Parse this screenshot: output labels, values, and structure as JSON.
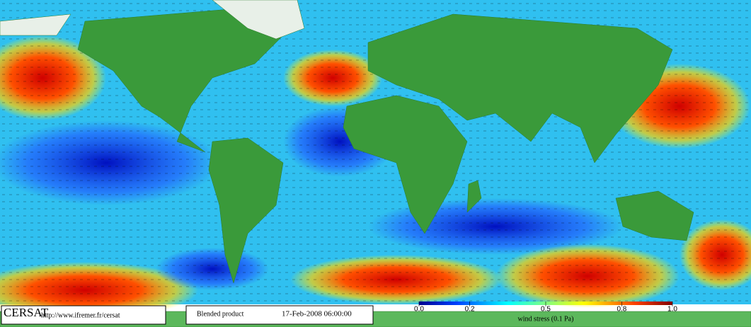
{
  "map": {
    "brand": "CERSAT",
    "url": "http://www.ifremer.fr/cersat",
    "product": "Blended product",
    "date": "17-Feb-2008 06:00:00"
  },
  "colorbar": {
    "label": "wind stress (0.1 Pa)",
    "lim": [
      0,
      1
    ],
    "ticks": [
      {
        "value": 0,
        "label": "0.0"
      },
      0.2,
      0.5,
      0.8,
      {
        "value": 1,
        "label": "1.0"
      }
    ]
  }
}
